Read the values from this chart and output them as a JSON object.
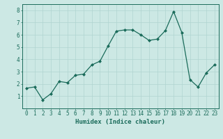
{
  "x": [
    0,
    1,
    2,
    3,
    4,
    5,
    6,
    7,
    8,
    9,
    10,
    11,
    12,
    13,
    14,
    15,
    16,
    17,
    18,
    19,
    20,
    21,
    22,
    23
  ],
  "y": [
    1.65,
    1.75,
    0.7,
    1.2,
    2.2,
    2.1,
    2.7,
    2.8,
    3.55,
    3.85,
    5.1,
    6.3,
    6.4,
    6.4,
    6.0,
    5.55,
    5.65,
    6.35,
    7.9,
    6.2,
    2.35,
    1.75,
    2.9,
    3.55
  ],
  "line_color": "#1a6b5a",
  "marker": "D",
  "markersize": 2.0,
  "linewidth": 0.9,
  "xlim": [
    -0.5,
    23.5
  ],
  "ylim": [
    0,
    8.5
  ],
  "yticks": [
    1,
    2,
    3,
    4,
    5,
    6,
    7,
    8
  ],
  "xticks": [
    0,
    1,
    2,
    3,
    4,
    5,
    6,
    7,
    8,
    9,
    10,
    11,
    12,
    13,
    14,
    15,
    16,
    17,
    18,
    19,
    20,
    21,
    22,
    23
  ],
  "xlabel": "Humidex (Indice chaleur)",
  "xlabel_fontsize": 6.5,
  "xlabel_color": "#1a6b5a",
  "tick_fontsize": 5.5,
  "bg_color": "#cce8e4",
  "grid_color": "#b0d4d0",
  "title": ""
}
